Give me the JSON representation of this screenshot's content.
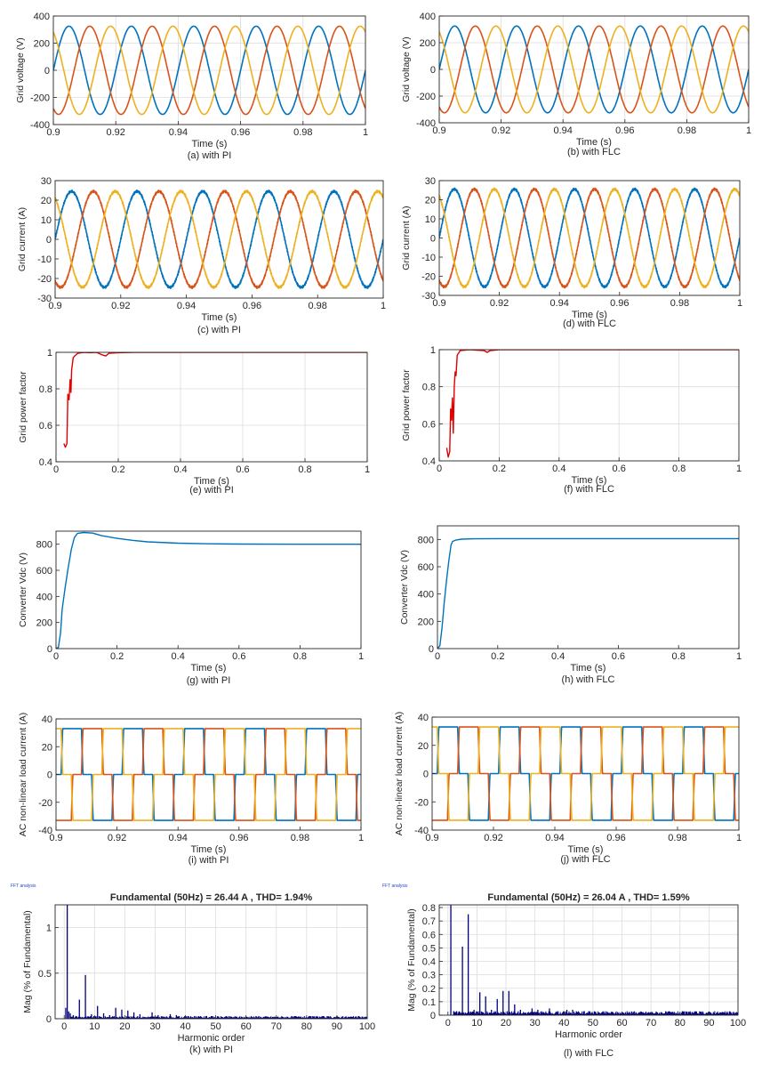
{
  "figure": {
    "panels": [
      {
        "id": "a",
        "caption": "(a) with PI"
      },
      {
        "id": "b",
        "caption": "(b) with FLC"
      },
      {
        "id": "c",
        "caption": "(c) with PI"
      },
      {
        "id": "d",
        "caption": "(d) with FLC"
      },
      {
        "id": "e",
        "caption": "(e) with PI"
      },
      {
        "id": "f",
        "caption": "(f) with FLC"
      },
      {
        "id": "g",
        "caption": "(g) with PI"
      },
      {
        "id": "h",
        "caption": "(h) with FLC"
      },
      {
        "id": "i",
        "caption": "(i) with PI"
      },
      {
        "id": "j",
        "caption": "(j) with FLC"
      },
      {
        "id": "k",
        "caption": "(k) with PI"
      },
      {
        "id": "l",
        "caption": "(l) with FLC"
      }
    ]
  },
  "colors": {
    "phase_a": "#0072BD",
    "phase_b": "#D95319",
    "phase_c": "#EDB120",
    "power_factor": "#E00000",
    "harmonic_bars": "#00007F",
    "grid": "#DCDCDC",
    "axes": "#262626"
  },
  "chart_data": [
    {
      "id": "a",
      "type": "line",
      "xlabel": "Time (s)",
      "ylabel": "Grid voltage (V)",
      "xlim": [
        0.9,
        1.0
      ],
      "ylim": [
        -400,
        400
      ],
      "xticks": [
        0.9,
        0.92,
        0.94,
        0.96,
        0.98,
        1
      ],
      "xtick_labels": [
        "0.9",
        "0.92",
        "0.94",
        "0.96",
        "0.98",
        "1"
      ],
      "yticks": [
        -400,
        -200,
        0,
        200,
        400
      ],
      "grid": true,
      "series": [
        {
          "kind": "sine",
          "amplitude": 325,
          "frequency_hz": 50,
          "phase_deg": 0,
          "color": "phase_a"
        },
        {
          "kind": "sine",
          "amplitude": 325,
          "frequency_hz": 50,
          "phase_deg": -120,
          "color": "phase_b"
        },
        {
          "kind": "sine",
          "amplitude": 325,
          "frequency_hz": 50,
          "phase_deg": 120,
          "color": "phase_c"
        }
      ]
    },
    {
      "id": "b",
      "type": "line",
      "xlabel": "Time (s)",
      "ylabel": "Grid voltage (V)",
      "xlim": [
        0.9,
        1.0
      ],
      "ylim": [
        -400,
        400
      ],
      "xticks": [
        0.9,
        0.92,
        0.94,
        0.96,
        0.98,
        1
      ],
      "xtick_labels": [
        "0.9",
        "0.92",
        "0.94",
        "0.96",
        "0.98",
        "1"
      ],
      "yticks": [
        -400,
        -200,
        0,
        200,
        400
      ],
      "grid": true,
      "series": [
        {
          "kind": "sine",
          "amplitude": 325,
          "frequency_hz": 50,
          "phase_deg": 0,
          "color": "phase_a"
        },
        {
          "kind": "sine",
          "amplitude": 325,
          "frequency_hz": 50,
          "phase_deg": -120,
          "color": "phase_b"
        },
        {
          "kind": "sine",
          "amplitude": 325,
          "frequency_hz": 50,
          "phase_deg": 120,
          "color": "phase_c"
        }
      ]
    },
    {
      "id": "c",
      "type": "line",
      "xlabel": "Time (s)",
      "ylabel": "Grid current (A)",
      "xlim": [
        0.9,
        1.0
      ],
      "ylim": [
        -30,
        30
      ],
      "xticks": [
        0.9,
        0.92,
        0.94,
        0.96,
        0.98,
        1
      ],
      "xtick_labels": [
        "0.9",
        "0.92",
        "0.94",
        "0.96",
        "0.98",
        "1"
      ],
      "yticks": [
        -30,
        -20,
        -10,
        0,
        10,
        20,
        30
      ],
      "grid": false,
      "series": [
        {
          "kind": "sine",
          "amplitude": 24.5,
          "frequency_hz": 50,
          "phase_deg": 0,
          "ripple": 0.6,
          "color": "phase_a"
        },
        {
          "kind": "sine",
          "amplitude": 24.5,
          "frequency_hz": 50,
          "phase_deg": -120,
          "ripple": 0.6,
          "color": "phase_b"
        },
        {
          "kind": "sine",
          "amplitude": 24.5,
          "frequency_hz": 50,
          "phase_deg": 120,
          "ripple": 0.6,
          "color": "phase_c"
        }
      ]
    },
    {
      "id": "d",
      "type": "line",
      "xlabel": "Time (s)",
      "ylabel": "Grid current (A)",
      "xlim": [
        0.9,
        1.0
      ],
      "ylim": [
        -30,
        30
      ],
      "xticks": [
        0.9,
        0.92,
        0.94,
        0.96,
        0.98,
        1
      ],
      "xtick_labels": [
        "0.9",
        "0.92",
        "0.94",
        "0.96",
        "0.98",
        "1"
      ],
      "yticks": [
        -30,
        -20,
        -10,
        0,
        10,
        20,
        30
      ],
      "grid": false,
      "series": [
        {
          "kind": "sine",
          "amplitude": 25.5,
          "frequency_hz": 50,
          "phase_deg": 0,
          "ripple": 0.6,
          "color": "phase_a"
        },
        {
          "kind": "sine",
          "amplitude": 25.5,
          "frequency_hz": 50,
          "phase_deg": -120,
          "ripple": 0.6,
          "color": "phase_b"
        },
        {
          "kind": "sine",
          "amplitude": 25.5,
          "frequency_hz": 50,
          "phase_deg": 120,
          "ripple": 0.6,
          "color": "phase_c"
        }
      ]
    },
    {
      "id": "e",
      "type": "line",
      "xlabel": "Time (s)",
      "ylabel": "Grid power factor",
      "xlim": [
        0,
        1
      ],
      "ylim": [
        0.4,
        1.0
      ],
      "xticks": [
        0,
        0.2,
        0.4,
        0.6,
        0.8,
        1
      ],
      "xtick_labels": [
        "0",
        "0.2",
        "0.4",
        "0.6",
        "0.8",
        "1"
      ],
      "yticks": [
        0.4,
        0.6,
        0.8,
        1.0
      ],
      "ytick_labels": [
        "0.4",
        "0.6",
        "0.8",
        "1"
      ],
      "grid": true,
      "series": [
        {
          "color": "power_factor",
          "points": [
            [
              0.025,
              0.5
            ],
            [
              0.03,
              0.48
            ],
            [
              0.035,
              0.5
            ],
            [
              0.038,
              0.77
            ],
            [
              0.042,
              0.74
            ],
            [
              0.045,
              0.85
            ],
            [
              0.048,
              0.78
            ],
            [
              0.05,
              0.9
            ],
            [
              0.055,
              0.97
            ],
            [
              0.06,
              0.98
            ],
            [
              0.07,
              0.995
            ],
            [
              0.09,
              1.0
            ],
            [
              0.11,
              0.998
            ],
            [
              0.13,
              1.0
            ],
            [
              0.15,
              0.985
            ],
            [
              0.16,
              0.98
            ],
            [
              0.17,
              0.995
            ],
            [
              0.2,
              0.998
            ],
            [
              0.25,
              1.0
            ],
            [
              1.0,
              1.0
            ]
          ]
        }
      ]
    },
    {
      "id": "f",
      "type": "line",
      "xlabel": "Time (s)",
      "ylabel": "Grid power factor",
      "xlim": [
        0,
        1
      ],
      "ylim": [
        0.4,
        1.0
      ],
      "xticks": [
        0,
        0.2,
        0.4,
        0.6,
        0.8,
        1
      ],
      "xtick_labels": [
        "0",
        "0.2",
        "0.4",
        "0.6",
        "0.8",
        "1"
      ],
      "yticks": [
        0.4,
        0.6,
        0.8,
        1.0
      ],
      "ytick_labels": [
        "0.4",
        "0.6",
        "0.8",
        "1"
      ],
      "grid": true,
      "series": [
        {
          "color": "power_factor",
          "points": [
            [
              0.025,
              0.47
            ],
            [
              0.03,
              0.42
            ],
            [
              0.035,
              0.45
            ],
            [
              0.038,
              0.68
            ],
            [
              0.041,
              0.62
            ],
            [
              0.044,
              0.74
            ],
            [
              0.047,
              0.55
            ],
            [
              0.05,
              0.8
            ],
            [
              0.053,
              0.88
            ],
            [
              0.056,
              0.86
            ],
            [
              0.06,
              0.97
            ],
            [
              0.07,
              0.995
            ],
            [
              0.1,
              1.0
            ],
            [
              0.15,
              0.995
            ],
            [
              0.16,
              0.985
            ],
            [
              0.17,
              0.995
            ],
            [
              0.2,
              1.0
            ],
            [
              0.25,
              1.0
            ],
            [
              1.0,
              1.0
            ]
          ]
        }
      ]
    },
    {
      "id": "g",
      "type": "line",
      "xlabel": "Time (s)",
      "ylabel": "Converter Vdc (V)",
      "xlim": [
        0,
        1
      ],
      "ylim": [
        0,
        900
      ],
      "xticks": [
        0,
        0.2,
        0.4,
        0.6,
        0.8,
        1
      ],
      "xtick_labels": [
        "0",
        "0.2",
        "0.4",
        "0.6",
        "0.8",
        "1"
      ],
      "yticks": [
        0,
        200,
        400,
        600,
        800
      ],
      "grid": false,
      "series": [
        {
          "color": "phase_a",
          "points": [
            [
              0,
              0
            ],
            [
              0.008,
              10
            ],
            [
              0.015,
              120
            ],
            [
              0.02,
              300
            ],
            [
              0.03,
              470
            ],
            [
              0.04,
              620
            ],
            [
              0.05,
              760
            ],
            [
              0.06,
              850
            ],
            [
              0.07,
              882
            ],
            [
              0.09,
              890
            ],
            [
              0.12,
              885
            ],
            [
              0.15,
              865
            ],
            [
              0.2,
              845
            ],
            [
              0.25,
              830
            ],
            [
              0.3,
              818
            ],
            [
              0.4,
              808
            ],
            [
              0.5,
              803
            ],
            [
              0.6,
              801
            ],
            [
              0.8,
              800
            ],
            [
              1.0,
              800
            ]
          ]
        }
      ]
    },
    {
      "id": "h",
      "type": "line",
      "xlabel": "Time (s)",
      "ylabel": "Converter Vdc (V)",
      "xlim": [
        0,
        1
      ],
      "ylim": [
        0,
        900
      ],
      "xticks": [
        0,
        0.2,
        0.4,
        0.6,
        0.8,
        1
      ],
      "xtick_labels": [
        "0",
        "0.2",
        "0.4",
        "0.6",
        "0.8",
        "1"
      ],
      "yticks": [
        0,
        200,
        400,
        600,
        800
      ],
      "grid": false,
      "series": [
        {
          "color": "phase_a",
          "points": [
            [
              0,
              0
            ],
            [
              0.008,
              20
            ],
            [
              0.015,
              150
            ],
            [
              0.022,
              330
            ],
            [
              0.03,
              500
            ],
            [
              0.038,
              650
            ],
            [
              0.045,
              760
            ],
            [
              0.05,
              785
            ],
            [
              0.06,
              795
            ],
            [
              0.08,
              802
            ],
            [
              0.12,
              805
            ],
            [
              0.2,
              806
            ],
            [
              0.4,
              806
            ],
            [
              0.6,
              806
            ],
            [
              0.8,
              806
            ],
            [
              1.0,
              806
            ]
          ]
        }
      ]
    },
    {
      "id": "i",
      "type": "line",
      "xlabel": "Time (s)",
      "ylabel": "AC non-linear load current (A)",
      "xlim": [
        0.9,
        1.0
      ],
      "ylim": [
        -40,
        40
      ],
      "xticks": [
        0.9,
        0.92,
        0.94,
        0.96,
        0.98,
        1
      ],
      "xtick_labels": [
        "0.9",
        "0.92",
        "0.94",
        "0.96",
        "0.98",
        "1"
      ],
      "yticks": [
        -40,
        -20,
        0,
        20,
        40
      ],
      "grid": false,
      "series": [
        {
          "kind": "six_pulse",
          "amplitude": 33,
          "frequency_hz": 50,
          "phase_deg": 0,
          "color": "phase_a"
        },
        {
          "kind": "six_pulse",
          "amplitude": 33,
          "frequency_hz": 50,
          "phase_deg": -120,
          "color": "phase_b"
        },
        {
          "kind": "six_pulse",
          "amplitude": 33,
          "frequency_hz": 50,
          "phase_deg": 120,
          "color": "phase_c"
        }
      ]
    },
    {
      "id": "j",
      "type": "line",
      "xlabel": "Time (s)",
      "ylabel": "AC non-linear load current (A)",
      "xlim": [
        0.9,
        1.0
      ],
      "ylim": [
        -40,
        40
      ],
      "xticks": [
        0.9,
        0.92,
        0.94,
        0.96,
        0.98,
        1
      ],
      "xtick_labels": [
        "0.9",
        "0.92",
        "0.94",
        "0.96",
        "0.98",
        "1"
      ],
      "yticks": [
        -40,
        -20,
        0,
        20,
        40
      ],
      "grid": false,
      "series": [
        {
          "kind": "six_pulse",
          "amplitude": 33,
          "frequency_hz": 50,
          "phase_deg": 0,
          "color": "phase_a"
        },
        {
          "kind": "six_pulse",
          "amplitude": 33,
          "frequency_hz": 50,
          "phase_deg": -120,
          "color": "phase_b"
        },
        {
          "kind": "six_pulse",
          "amplitude": 33,
          "frequency_hz": 50,
          "phase_deg": 120,
          "color": "phase_c"
        }
      ]
    },
    {
      "id": "k",
      "type": "bar",
      "window_label": "FFT analysis",
      "title": "Fundamental (50Hz) = 26.44 A , THD= 1.94%",
      "xlabel": "Harmonic order",
      "ylabel": "Mag (% of Fundamental)",
      "xlim": [
        -3,
        100
      ],
      "ylim": [
        0,
        1.25
      ],
      "xticks": [
        0,
        10,
        20,
        30,
        40,
        50,
        60,
        70,
        80,
        90,
        100
      ],
      "yticks": [
        0,
        0.5,
        1
      ],
      "ytick_labels": [
        "0",
        "0.5",
        "1"
      ],
      "grid": true,
      "bar_color": "harmonic_bars",
      "harmonics": [
        [
          0.5,
          0.12
        ],
        [
          1,
          1.25
        ],
        [
          1.5,
          0.08
        ],
        [
          2,
          0.06
        ],
        [
          3,
          0.04
        ],
        [
          4,
          0.03
        ],
        [
          5,
          0.21
        ],
        [
          7,
          0.48
        ],
        [
          9,
          0.05
        ],
        [
          11,
          0.14
        ],
        [
          13,
          0.06
        ],
        [
          15,
          0.04
        ],
        [
          17,
          0.12
        ],
        [
          19,
          0.1
        ],
        [
          21,
          0.09
        ],
        [
          23,
          0.07
        ],
        [
          25,
          0.05
        ],
        [
          29,
          0.07
        ],
        [
          31,
          0.04
        ],
        [
          35,
          0.05
        ],
        [
          37,
          0.04
        ],
        [
          41,
          0.03
        ],
        [
          43,
          0.03
        ],
        [
          47,
          0.03
        ]
      ],
      "noise_floor": 0.02
    },
    {
      "id": "l",
      "type": "bar",
      "window_label": "FFT analysis",
      "title": "Fundamental (50Hz) = 26.04 A , THD= 1.59%",
      "xlabel": "Harmonic order",
      "ylabel": "Mag (% of Fundamental)",
      "xlim": [
        -3,
        100
      ],
      "ylim": [
        0,
        0.82
      ],
      "xticks": [
        0,
        10,
        20,
        30,
        40,
        50,
        60,
        70,
        80,
        90,
        100
      ],
      "yticks": [
        0,
        0.1,
        0.2,
        0.3,
        0.4,
        0.5,
        0.6,
        0.7,
        0.8
      ],
      "grid": true,
      "bar_color": "harmonic_bars",
      "harmonics": [
        [
          1,
          0.82
        ],
        [
          2,
          0.03
        ],
        [
          3,
          0.03
        ],
        [
          5,
          0.51
        ],
        [
          7,
          0.75
        ],
        [
          9,
          0.04
        ],
        [
          11,
          0.17
        ],
        [
          13,
          0.14
        ],
        [
          15,
          0.04
        ],
        [
          17,
          0.12
        ],
        [
          19,
          0.18
        ],
        [
          21,
          0.18
        ],
        [
          23,
          0.08
        ],
        [
          25,
          0.04
        ],
        [
          29,
          0.05
        ],
        [
          31,
          0.04
        ],
        [
          35,
          0.05
        ],
        [
          41,
          0.04
        ],
        [
          43,
          0.04
        ],
        [
          47,
          0.03
        ]
      ],
      "noise_floor": 0.02
    }
  ]
}
